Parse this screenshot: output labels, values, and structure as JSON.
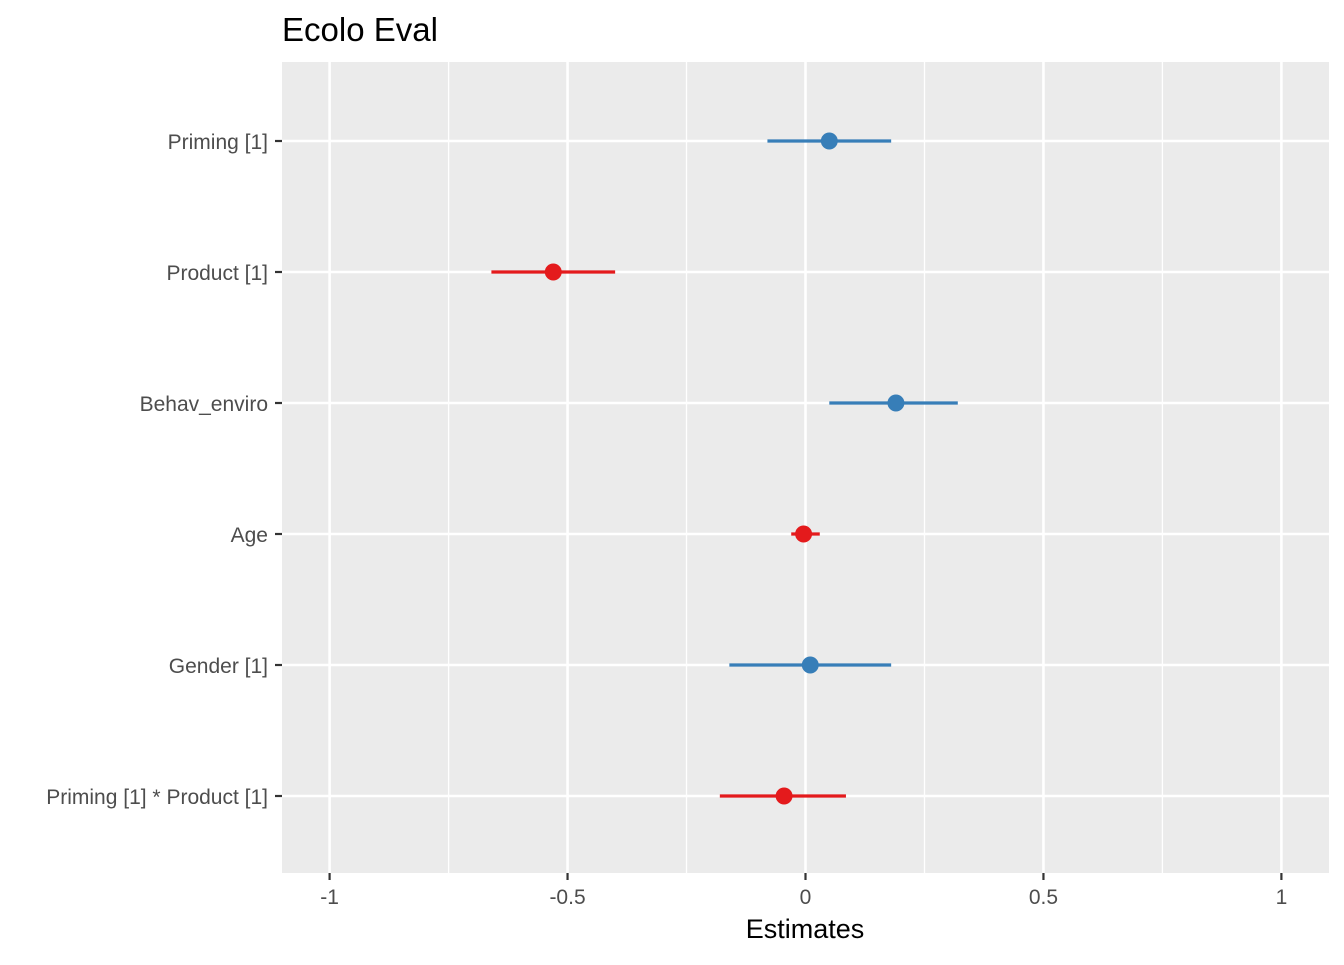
{
  "chart_data": {
    "type": "scatter",
    "subtype": "forest-plot",
    "title": "Ecolo Eval",
    "xlabel": "Estimates",
    "ylabel": "",
    "xlim": [
      -1.1,
      1.1
    ],
    "xticks": [
      -1,
      -0.5,
      0,
      0.5,
      1
    ],
    "xtick_labels": [
      "-1",
      "-0.5",
      "0",
      "0.5",
      "1"
    ],
    "grid": true,
    "legend": "none",
    "colors": {
      "positive": "#377eb8",
      "negative": "#e41a1c",
      "panel": "#ebebeb",
      "grid": "#ffffff"
    },
    "terms": [
      {
        "label": "Priming [1]",
        "estimate": 0.05,
        "ci_low": -0.08,
        "ci_high": 0.18,
        "sign": "positive"
      },
      {
        "label": "Product [1]",
        "estimate": -0.53,
        "ci_low": -0.66,
        "ci_high": -0.4,
        "sign": "negative"
      },
      {
        "label": "Behav_enviro",
        "estimate": 0.19,
        "ci_low": 0.05,
        "ci_high": 0.32,
        "sign": "positive"
      },
      {
        "label": "Age",
        "estimate": -0.004,
        "ci_low": -0.03,
        "ci_high": 0.03,
        "sign": "negative"
      },
      {
        "label": "Gender [1]",
        "estimate": 0.01,
        "ci_low": -0.16,
        "ci_high": 0.18,
        "sign": "positive"
      },
      {
        "label": "Priming [1] * Product [1]",
        "estimate": -0.045,
        "ci_low": -0.18,
        "ci_high": 0.085,
        "sign": "negative"
      }
    ]
  }
}
